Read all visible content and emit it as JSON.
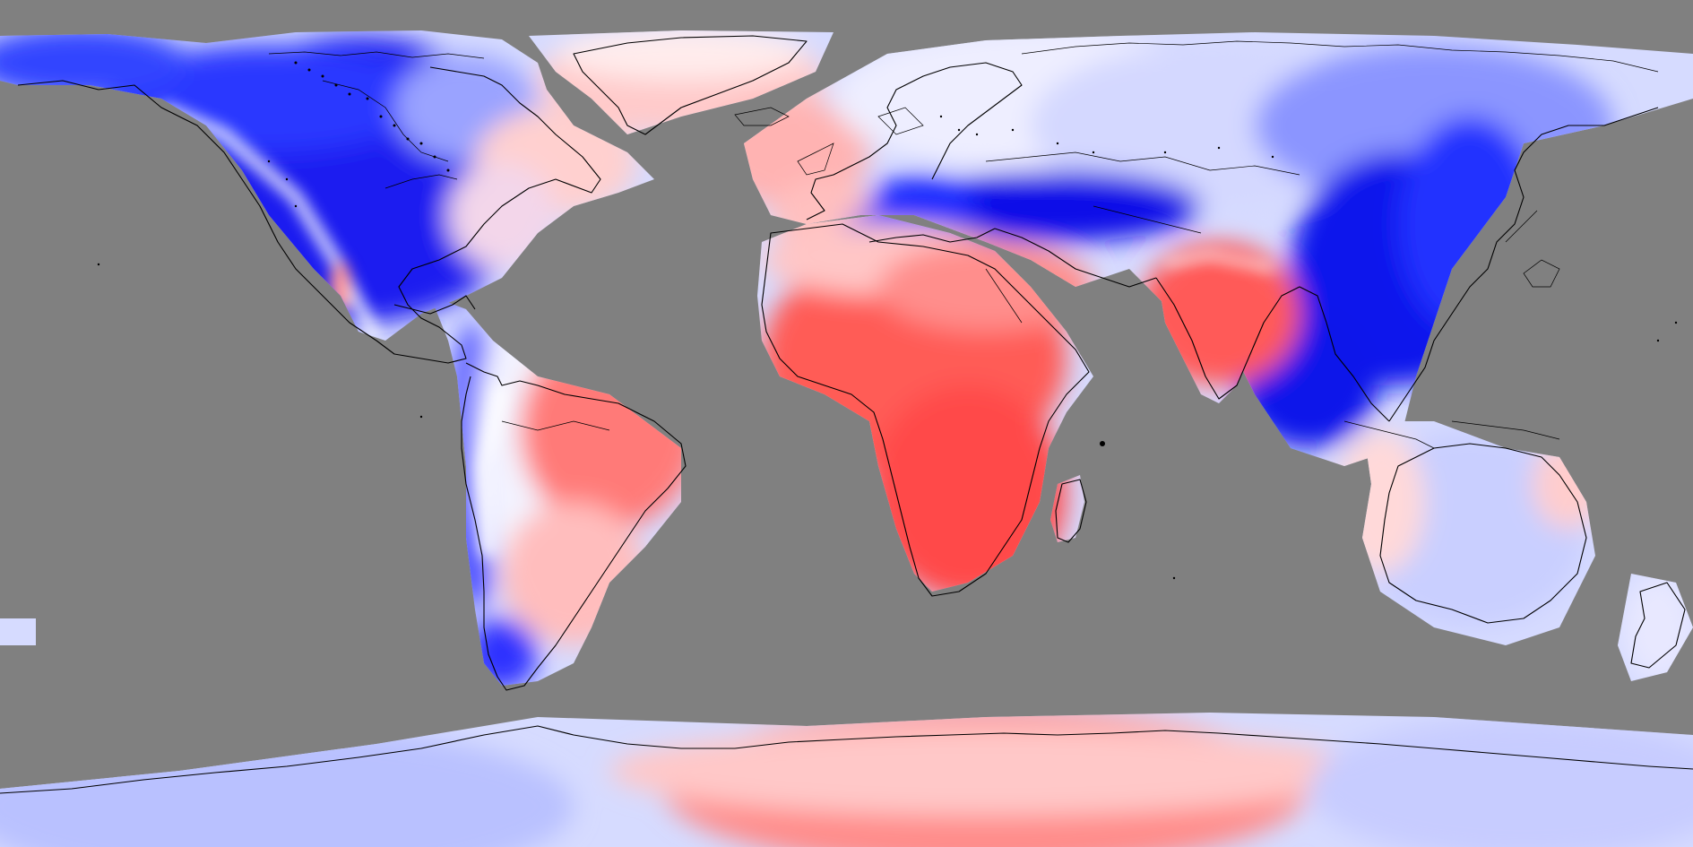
{
  "map": {
    "projection": "equirectangular",
    "ocean_color": "#808080",
    "coastline_color": "#000000",
    "palette": {
      "strong_negative": "#0000e6",
      "medium_negative": "#3c46ff",
      "weak_negative": "#b4bcff",
      "faint_negative": "#d9ddff",
      "neutral": "#ffffff",
      "faint_positive": "#ffdcdc",
      "weak_positive": "#ffb0ae",
      "medium_positive": "#ff7a77",
      "strong_positive": "#ff4a4a"
    }
  }
}
